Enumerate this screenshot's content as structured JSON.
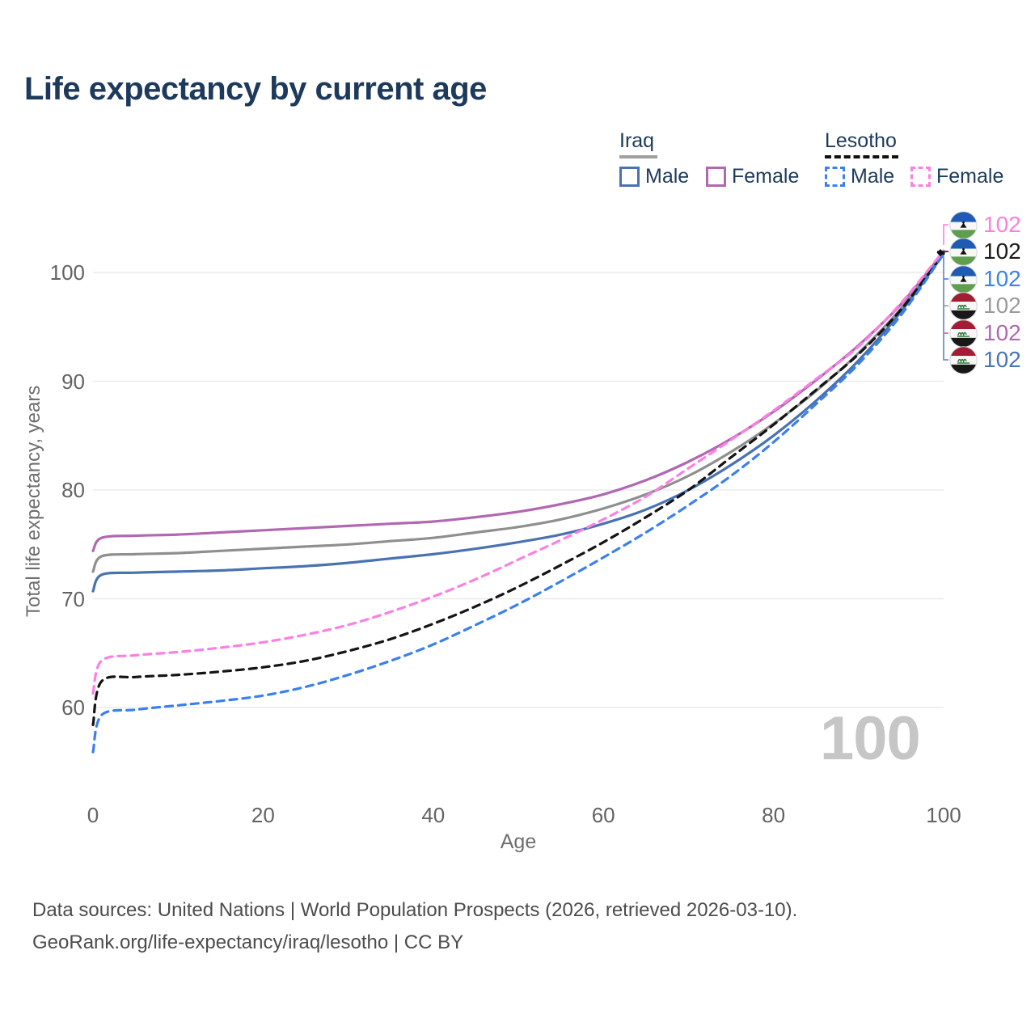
{
  "title": "Life expectancy by current age",
  "legend": {
    "groups": [
      {
        "label": "Iraq",
        "underline_color": "#a0a0a0",
        "underline_style": "solid",
        "items": [
          {
            "label": "Male",
            "color": "#4a72b2",
            "dashed": false
          },
          {
            "label": "Female",
            "color": "#b168b1",
            "dashed": false
          }
        ]
      },
      {
        "label": "Lesotho",
        "underline_color": "#111111",
        "underline_style": "dashed",
        "items": [
          {
            "label": "Male",
            "color": "#3b80ee",
            "dashed": true
          },
          {
            "label": "Female",
            "color": "#fc80e2",
            "dashed": true
          }
        ]
      }
    ]
  },
  "axes": {
    "x_label": "Age",
    "y_label": "Total life expectancy, years",
    "x_ticks": [
      0,
      20,
      40,
      60,
      80,
      100
    ],
    "y_ticks": [
      60,
      70,
      80,
      90,
      100
    ]
  },
  "watermark": "100",
  "end_labels": [
    {
      "country": "Lesotho",
      "flag": "lesotho-flag-icon",
      "value": "102",
      "color": "#ff7de1"
    },
    {
      "country": "Lesotho",
      "flag": "lesotho-flag-icon",
      "value": "102",
      "color": "#1a1a1a"
    },
    {
      "country": "Lesotho",
      "flag": "lesotho-flag-icon",
      "value": "102",
      "color": "#3b82ec"
    },
    {
      "country": "Iraq",
      "flag": "iraq-flag-icon",
      "value": "102",
      "color": "#9b9b9b"
    },
    {
      "country": "Iraq",
      "flag": "iraq-flag-icon",
      "value": "102",
      "color": "#b268b2"
    },
    {
      "country": "Iraq",
      "flag": "iraq-flag-icon",
      "value": "102",
      "color": "#4a74b8"
    }
  ],
  "footer": {
    "line1": "Data sources: United Nations | World Population Prospects (2026, retrieved 2026-03-10).",
    "line2": "GeoRank.org/life-expectancy/iraq/lesotho | CC BY"
  },
  "chart_data": {
    "type": "line",
    "title": "Life expectancy by current age",
    "xlabel": "Age",
    "ylabel": "Total life expectancy, years",
    "xlim": [
      0,
      100
    ],
    "ylim": [
      55,
      104
    ],
    "y_gridlines": [
      60,
      70,
      80,
      90,
      100
    ],
    "grid": "horizontal-only",
    "legend_position": "top-right",
    "ages": [
      0,
      1,
      5,
      10,
      15,
      20,
      25,
      30,
      35,
      40,
      45,
      50,
      55,
      60,
      65,
      70,
      75,
      80,
      85,
      90,
      95,
      100
    ],
    "series": [
      {
        "name": "Iraq Female",
        "color": "#b168b1",
        "dashed": false,
        "values": [
          74.4,
          75.6,
          75.8,
          75.9,
          76.1,
          76.3,
          76.5,
          76.7,
          76.9,
          77.1,
          77.5,
          78.0,
          78.7,
          79.6,
          80.9,
          82.6,
          84.7,
          87.2,
          90.1,
          93.3,
          97.1,
          101.9
        ]
      },
      {
        "name": "Iraq Both sexes",
        "color": "#8f8f8f",
        "dashed": false,
        "values": [
          72.5,
          73.9,
          74.1,
          74.2,
          74.4,
          74.6,
          74.8,
          75.0,
          75.3,
          75.6,
          76.1,
          76.6,
          77.3,
          78.3,
          79.6,
          81.3,
          83.5,
          86.1,
          89.1,
          92.6,
          96.7,
          101.8
        ]
      },
      {
        "name": "Iraq Male",
        "color": "#4a72b2",
        "dashed": false,
        "values": [
          70.7,
          72.2,
          72.4,
          72.5,
          72.6,
          72.8,
          73.0,
          73.3,
          73.7,
          74.1,
          74.6,
          75.2,
          75.9,
          76.9,
          78.2,
          80.0,
          82.3,
          85.0,
          88.2,
          91.9,
          96.4,
          101.7
        ]
      },
      {
        "name": "Lesotho Both sexes",
        "color": "#141414",
        "dashed": true,
        "values": [
          58.4,
          62.4,
          62.8,
          63.0,
          63.3,
          63.7,
          64.3,
          65.2,
          66.3,
          67.7,
          69.3,
          71.1,
          73.1,
          75.2,
          77.5,
          80.0,
          83.0,
          86.0,
          89.2,
          92.5,
          96.6,
          101.8
        ]
      },
      {
        "name": "Lesotho Male",
        "color": "#3b80ee",
        "dashed": true,
        "values": [
          55.9,
          59.3,
          59.8,
          60.2,
          60.6,
          61.1,
          61.9,
          63.0,
          64.3,
          65.8,
          67.6,
          69.5,
          71.6,
          73.8,
          76.1,
          78.6,
          81.3,
          84.4,
          87.9,
          91.6,
          96.1,
          101.7
        ]
      },
      {
        "name": "Lesotho Female",
        "color": "#fc80e2",
        "dashed": true,
        "values": [
          61.3,
          64.3,
          64.8,
          65.1,
          65.5,
          66.0,
          66.7,
          67.6,
          68.8,
          70.2,
          71.8,
          73.6,
          75.4,
          77.3,
          79.4,
          82.0,
          84.6,
          87.3,
          90.2,
          93.2,
          97.2,
          102.0
        ]
      }
    ],
    "end_value_labels": [
      102,
      102,
      102,
      102,
      102,
      102
    ]
  }
}
